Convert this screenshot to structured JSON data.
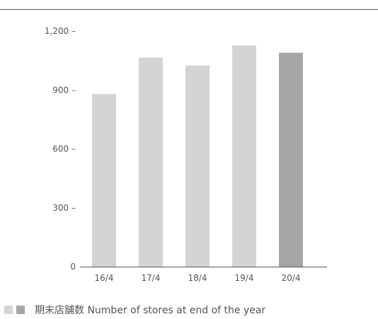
{
  "chart_data": {
    "type": "bar",
    "categories": [
      "16/4",
      "17/4",
      "18/4",
      "19/4",
      "20/4"
    ],
    "values": [
      880,
      1065,
      1025,
      1127,
      1090
    ],
    "ylim": [
      0,
      1200
    ],
    "yticks": [
      0,
      300,
      600,
      900,
      1200
    ],
    "ytick_labels": [
      "0",
      "300 –",
      "600 –",
      "900 –",
      "1,200 –"
    ],
    "legend": {
      "placement": "bottom-left",
      "label": "期末店舗数 Number of stores at end of the year"
    },
    "grid": false,
    "colors": {
      "past_bar": "#d4d4d4",
      "latest_bar": "#a6a6a6",
      "axis": "#555555"
    }
  }
}
